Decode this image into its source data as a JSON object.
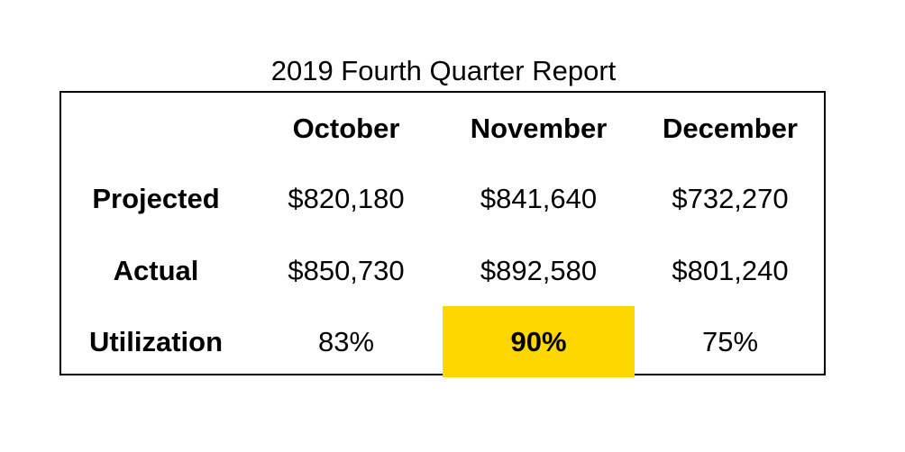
{
  "chart_data": {
    "type": "table",
    "title": "2019 Fourth Quarter Report",
    "columns": [
      "October",
      "November",
      "December"
    ],
    "rows": [
      {
        "label": "Projected",
        "values": [
          "$820,180",
          "$841,640",
          "$732,270"
        ]
      },
      {
        "label": "Actual",
        "values": [
          "$850,730",
          "$892,580",
          "$801,240"
        ]
      },
      {
        "label": "Utilization",
        "values": [
          "83%",
          "90%",
          "75%"
        ]
      }
    ],
    "highlight": {
      "row": "Utilization",
      "column": "November",
      "color": "#FFD700"
    }
  }
}
